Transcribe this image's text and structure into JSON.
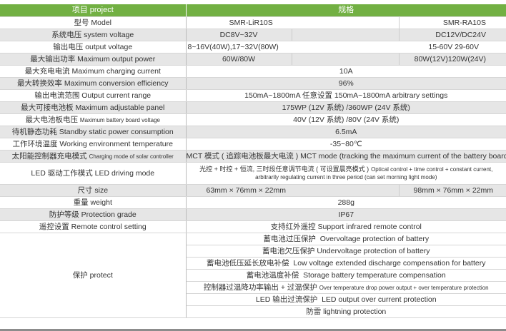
{
  "header": {
    "project": "项目 project",
    "spec": "规格"
  },
  "split_rows": [
    {
      "label": "型号 Model",
      "a": "SMR-LiR10S",
      "b": "SMR-RA10S"
    },
    {
      "label": "系统电压 system voltage",
      "a": "DC8V~32V",
      "b": "DC12V/DC24V"
    },
    {
      "label": "输出电压 output voltage",
      "a": "8~16V(40W),17~32V(80W)",
      "b": "15-60V 29-60V"
    },
    {
      "label": "最大输出功率 Maximum output power",
      "a": "60W/80W",
      "b": "80W(12V)120W(24V)"
    }
  ],
  "rows": [
    {
      "label": "最大充电电流 Maximum charging current",
      "value": "10A"
    },
    {
      "label": "最大转换效率 Maximum conversion efficiency",
      "value": "96%"
    },
    {
      "label": "输出电流范围 Output current range",
      "value": "150mA~1800mA 任意设置 150mA~1800mA arbitrary settings"
    },
    {
      "label": "最大可接电池板 Maximum adjustable panel",
      "value": "175WP (12V 系统) /360WP (24V 系统)"
    },
    {
      "label_cn": "最大电池板电压",
      "label_en": "Maximum battery board voltage",
      "value": "40V (12V 系统) /80V (24V 系统)"
    },
    {
      "label": "待机静态功耗 Standby static power consumption",
      "value": "6.5mA"
    },
    {
      "label": "工作环境温度 Working environment temperature",
      "value": "-35~80℃"
    },
    {
      "label_cn": "太阳能控制器充电模式",
      "label_en": "Charging mode of solar controller",
      "value": "MCT 模式 ( 追踪电池板最大电流 )  MCT mode (tracking the maximum current of the battery board)"
    },
    {
      "label": "LED 驱动工作模式 LED driving mode",
      "value_cn": "光控 + 时控 + 恒流, 三时段任意调节电流 ( 可设置晨亮模式 )",
      "value_en": "Optical control + time control + constant current, arbitrarily regulating current in three period (can set morning light mode)"
    }
  ],
  "size": {
    "label": "尺寸 size",
    "a": "63mm × 76mm × 22mm",
    "b": "98mm × 76mm × 22mm"
  },
  "rows2": [
    {
      "label": "重量 weight",
      "value": "288g"
    },
    {
      "label": "防护等级 Protection grade",
      "value": "IP67"
    },
    {
      "label": "遥控设置 Remote control setting",
      "value": "支持红外遥控  Support infrared remote control"
    }
  ],
  "protect": {
    "label": "保护 protect",
    "items": [
      {
        "cn": "蓄电池过压保护",
        "en": "Overvoltage protection of battery"
      },
      {
        "cn": "蓄电池欠压保护",
        "en": "Undervoltage protection of battery"
      },
      {
        "cn": "蓄电池低压延长放电补偿",
        "en": "Low voltage extended discharge compensation for battery"
      },
      {
        "cn": "蓄电池温度补偿",
        "en": "Storage battery temperature compensation"
      },
      {
        "cn": "控制器过温降功率输出 + 过温保护",
        "en": "Over temperature drop power output + over temperature protection"
      },
      {
        "cn": "LED 输出过流保护",
        "en": "LED output over current protection"
      },
      {
        "cn": "防雷",
        "en": "lightning protection"
      }
    ]
  }
}
